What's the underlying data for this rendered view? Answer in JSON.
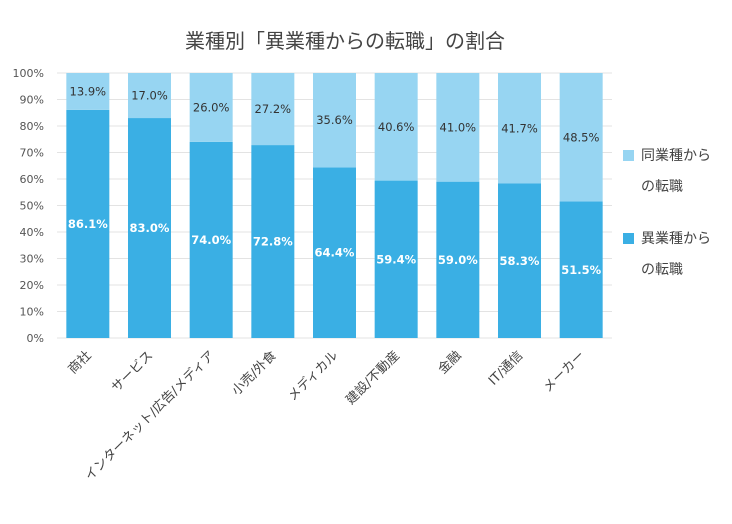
{
  "chart_data": {
    "type": "bar",
    "stacked": true,
    "title": "業種別「異業種からの転職」の割合",
    "categories": [
      "商社",
      "サービス",
      "インターネット/広告/メディア",
      "小売/外食",
      "メディカル",
      "建設/不動産",
      "金融",
      "IT/通信",
      "メーカー"
    ],
    "series": [
      {
        "name": "異業種からの転職",
        "color": "#3aafe4",
        "values": [
          86.1,
          83.0,
          74.0,
          72.8,
          64.4,
          59.4,
          59.0,
          58.3,
          51.5
        ],
        "labels": [
          "86.1%",
          "83.0%",
          "74.0%",
          "72.8%",
          "64.4%",
          "59.4%",
          "59.0%",
          "58.3%",
          "51.5%"
        ]
      },
      {
        "name": "同業種からの転職",
        "color": "#97d5f2",
        "values": [
          13.9,
          17.0,
          26.0,
          27.2,
          35.6,
          40.6,
          41.0,
          41.7,
          48.5
        ],
        "labels": [
          "13.9%",
          "17.0%",
          "26.0%",
          "27.2%",
          "35.6%",
          "40.6%",
          "41.0%",
          "41.7%",
          "48.5%"
        ]
      }
    ],
    "ylim": [
      0,
      100
    ],
    "yticks": [
      "0%",
      "10%",
      "20%",
      "30%",
      "40%",
      "50%",
      "60%",
      "70%",
      "80%",
      "90%",
      "100%"
    ],
    "grid": true,
    "legend": {
      "position": "right",
      "entries": [
        {
          "lines": [
            "同業種から",
            "の転職"
          ],
          "color": "#97d5f2"
        },
        {
          "lines": [
            "異業種から",
            "の転職"
          ],
          "color": "#3aafe4"
        }
      ]
    }
  }
}
